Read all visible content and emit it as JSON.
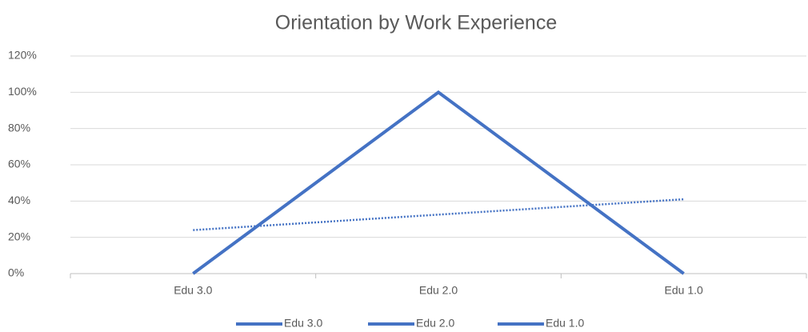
{
  "chart_data": {
    "type": "line",
    "title": "Orientation by Work Experience",
    "categories": [
      "Edu 3.0",
      "Edu 2.0",
      "Edu 1.0"
    ],
    "series": [
      {
        "color": "#4472c4",
        "values": [
          0,
          100,
          0
        ]
      }
    ],
    "trendline": {
      "color": "#4472c4",
      "style": "dotted",
      "values": [
        24,
        41
      ]
    },
    "ylim": [
      0,
      120
    ],
    "yticks": [
      {
        "value": 0,
        "label": "0%"
      },
      {
        "value": 20,
        "label": "20%"
      },
      {
        "value": 40,
        "label": "40%"
      },
      {
        "value": 60,
        "label": "60%"
      },
      {
        "value": 80,
        "label": "80%"
      },
      {
        "value": 100,
        "label": "100%"
      },
      {
        "value": 120,
        "label": "120%"
      }
    ],
    "grid": true,
    "legend": "bottom"
  }
}
